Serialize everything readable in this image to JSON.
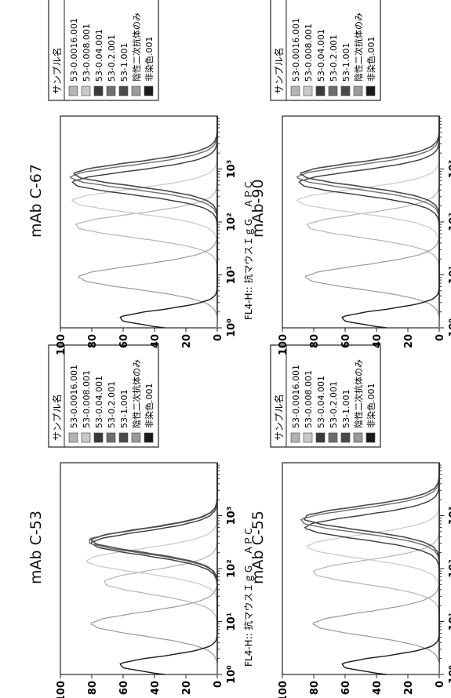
{
  "legend": {
    "title": "サンプル名",
    "items": [
      "53-0.0016.001",
      "53-0.008.001",
      "53-0.04.001",
      "53-0.2.001",
      "53-1.001",
      "陰性二次抗体のみ",
      "非染色.001"
    ],
    "swatch_colors": [
      "#b4b4b4",
      "#c8c8c8",
      "#3a3a3a",
      "#6e6e6e",
      "#4a4a4a",
      "#9a9a9a",
      "#1a1a1a"
    ]
  },
  "xaxis_label": "FL4-H:: 抗マウスＩｇＧ　ＡＰＣ",
  "xticks": [
    "10⁰",
    "10¹",
    "10²",
    "10³"
  ],
  "yticks": [
    "0",
    "20",
    "40",
    "60",
    "80",
    "100"
  ],
  "chart_data": [
    {
      "type": "line",
      "title": "mAb C-53",
      "xlabel": "FL4-H:: 抗マウスＩｇＧ　ＡＰＣ",
      "ylabel": "",
      "xscale": "log",
      "xlim": [
        1,
        10000
      ],
      "ylim": [
        0,
        100
      ],
      "series": [
        {
          "name": "53-0.0016.001",
          "peak_x": 55,
          "peak_y": 72
        },
        {
          "name": "53-0.008.001",
          "peak_x": 140,
          "peak_y": 83
        },
        {
          "name": "53-0.04.001",
          "peak_x": 300,
          "peak_y": 80
        },
        {
          "name": "53-0.2.001",
          "peak_x": 330,
          "peak_y": 82
        },
        {
          "name": "53-1.001",
          "peak_x": 340,
          "peak_y": 80
        },
        {
          "name": "陰性二次抗体のみ",
          "peak_x": 9,
          "peak_y": 80
        },
        {
          "name": "非染色.001",
          "peak_x": 1.5,
          "peak_y": 62
        }
      ]
    },
    {
      "type": "line",
      "title": "mAb C-55",
      "xlabel": "FL4-H:: 抗マウスＩｇＧ　ＡＰＣ",
      "ylabel": "",
      "xscale": "log",
      "xlim": [
        1,
        10000
      ],
      "ylim": [
        0,
        100
      ],
      "series": [
        {
          "name": "53-0.0016.001",
          "peak_x": 85,
          "peak_y": 80
        },
        {
          "name": "53-0.008.001",
          "peak_x": 260,
          "peak_y": 84
        },
        {
          "name": "53-0.04.001",
          "peak_x": 600,
          "peak_y": 85
        },
        {
          "name": "53-0.2.001",
          "peak_x": 800,
          "peak_y": 88
        },
        {
          "name": "53-1.001",
          "peak_x": 900,
          "peak_y": 86
        },
        {
          "name": "陰性二次抗体のみ",
          "peak_x": 9,
          "peak_y": 80
        },
        {
          "name": "非染色.001",
          "peak_x": 1.5,
          "peak_y": 62
        }
      ]
    },
    {
      "type": "line",
      "title": "mAb C-67",
      "xlabel": "FL4-H:: 抗マウスＩｇＧ　ＡＰＣ",
      "ylabel": "",
      "xscale": "log",
      "xlim": [
        1,
        10000
      ],
      "ylim": [
        0,
        100
      ],
      "series": [
        {
          "name": "53-0.0016.001",
          "peak_x": 85,
          "peak_y": 90
        },
        {
          "name": "53-0.008.001",
          "peak_x": 250,
          "peak_y": 92
        },
        {
          "name": "53-0.04.001",
          "peak_x": 550,
          "peak_y": 92
        },
        {
          "name": "53-0.2.001",
          "peak_x": 700,
          "peak_y": 93
        },
        {
          "name": "53-1.001",
          "peak_x": 800,
          "peak_y": 91
        },
        {
          "name": "陰性二次抗体のみ",
          "peak_x": 9,
          "peak_y": 88
        },
        {
          "name": "非染色.001",
          "peak_x": 1.5,
          "peak_y": 62
        }
      ]
    },
    {
      "type": "line",
      "title": "mAb-90",
      "xlabel": "FL4-H:: 抗マウスＩｇＧ　ＡＰＣ",
      "ylabel": "",
      "xscale": "log",
      "xlim": [
        1,
        10000
      ],
      "ylim": [
        0,
        100
      ],
      "series": [
        {
          "name": "53-0.0016.001",
          "peak_x": 85,
          "peak_y": 84
        },
        {
          "name": "53-0.008.001",
          "peak_x": 250,
          "peak_y": 90
        },
        {
          "name": "53-0.04.001",
          "peak_x": 550,
          "peak_y": 89
        },
        {
          "name": "53-0.2.001",
          "peak_x": 700,
          "peak_y": 90
        },
        {
          "name": "53-1.001",
          "peak_x": 800,
          "peak_y": 88
        },
        {
          "name": "陰性二次抗体のみ",
          "peak_x": 9,
          "peak_y": 85
        },
        {
          "name": "非染色.001",
          "peak_x": 1.5,
          "peak_y": 62
        }
      ]
    }
  ]
}
